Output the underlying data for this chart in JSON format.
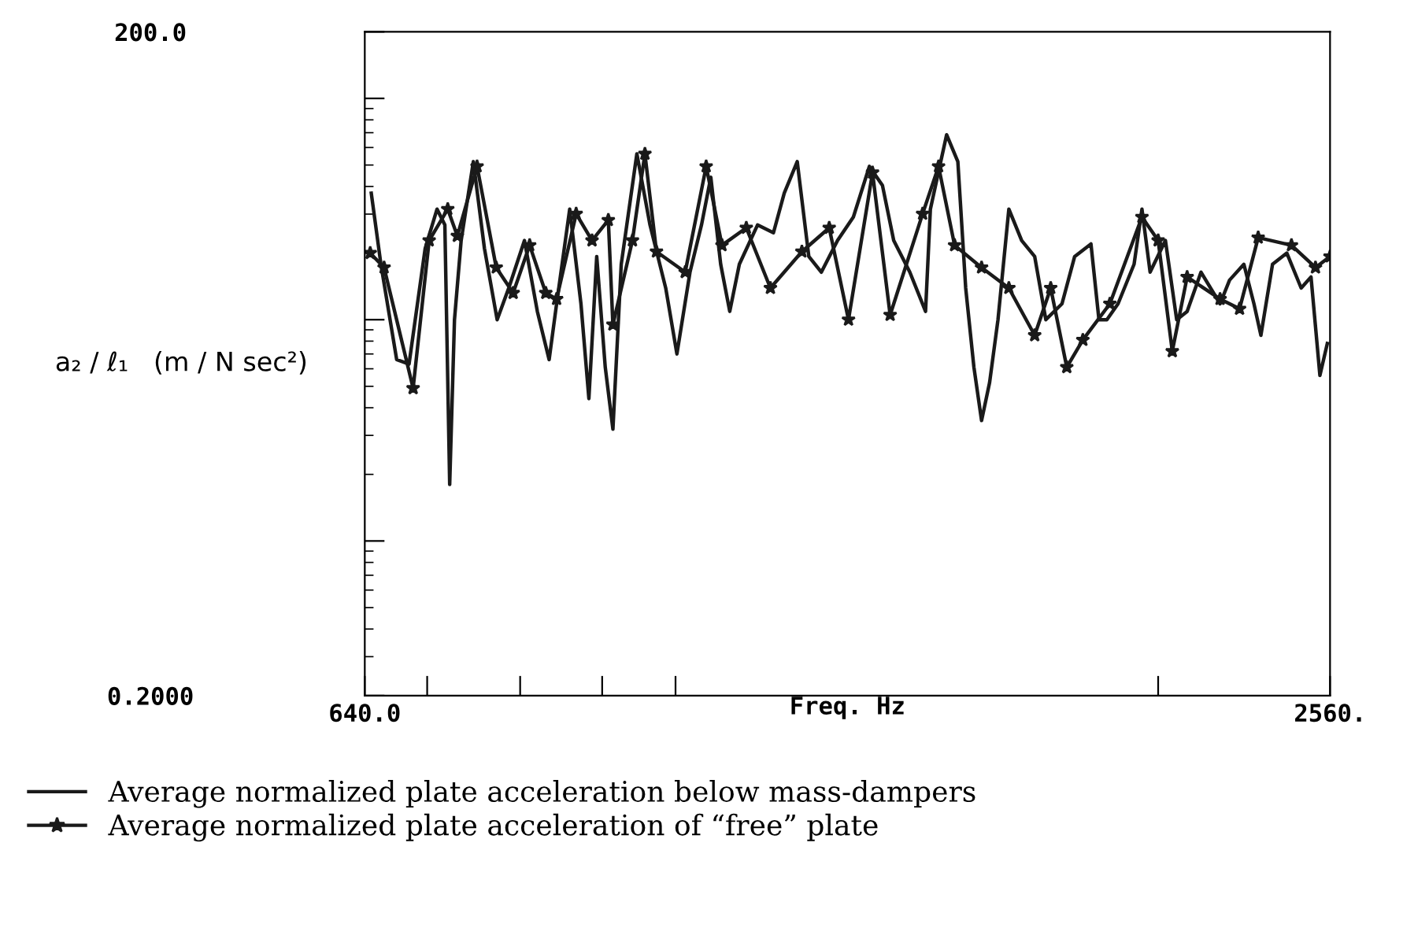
{
  "chart_data": {
    "type": "line",
    "xlabel": "Freq. Hz",
    "ylabel": "a₂ / ℓ₁   (m / N sec²)",
    "log": "xy",
    "xlim": [
      640,
      2560
    ],
    "ylim": [
      0.2,
      200
    ],
    "xticks": [
      {
        "value": 640,
        "label": "640.0"
      },
      {
        "value": 700,
        "label": null
      },
      {
        "value": 800,
        "label": null
      },
      {
        "value": 900,
        "label": null
      },
      {
        "value": 1000,
        "label": null
      },
      {
        "value": 2000,
        "label": null
      },
      {
        "value": 2560,
        "label": "2560."
      }
    ],
    "yticks": [
      {
        "value": 0.2,
        "label": "0.2000"
      },
      {
        "value": 1,
        "label": null
      },
      {
        "value": 10,
        "label": null
      },
      {
        "value": 100,
        "label": null
      },
      {
        "value": 200,
        "label": "200.0"
      }
    ],
    "grid": false,
    "legend": "bottom",
    "series": [
      {
        "name": "Average normalized plate acceleration below mass-dampers",
        "color": "#1a1a1a",
        "marker": "none",
        "x": [
          646,
          655,
          670,
          682,
          698,
          710,
          718,
          723,
          728,
          735,
          748,
          760,
          774,
          787,
          805,
          820,
          834,
          843,
          859,
          873,
          883,
          893,
          904,
          914,
          925,
          946,
          964,
          986,
          1002,
          1021,
          1038,
          1052,
          1067,
          1081,
          1096,
          1125,
          1151,
          1169,
          1191,
          1211,
          1233,
          1262,
          1291,
          1321,
          1346,
          1368,
          1400,
          1432,
          1442,
          1476,
          1500,
          1517,
          1535,
          1552,
          1570,
          1589,
          1614,
          1644,
          1675,
          1702,
          1742,
          1774,
          1816,
          1837,
          1858,
          1888,
          1932,
          1954,
          1977,
          2021,
          2054,
          2085,
          2127,
          2186,
          2216,
          2262,
          2295,
          2318,
          2357,
          2406,
          2456,
          2491,
          2523,
          2550
        ],
        "values": [
          37.3,
          17.8,
          6.6,
          6.3,
          21.0,
          31.6,
          26.8,
          1.8,
          10,
          22.8,
          51.8,
          21.0,
          10,
          13.9,
          22.8,
          10.9,
          6.6,
          11.8,
          31.6,
          11.8,
          4.4,
          19.3,
          6.1,
          3.2,
          17.8,
          56.2,
          26.8,
          13.9,
          7.0,
          16.4,
          26.8,
          44.0,
          17.8,
          10.9,
          17.8,
          26.8,
          24.7,
          37.3,
          51.8,
          19.3,
          16.4,
          22.8,
          29.1,
          49.3,
          40.5,
          22.8,
          16.4,
          10.9,
          31.6,
          68.5,
          51.8,
          13.9,
          6.1,
          3.5,
          5.2,
          10,
          31.6,
          22.8,
          19.3,
          10,
          11.8,
          19.3,
          22.0,
          10,
          10,
          11.8,
          17.8,
          31.6,
          16.4,
          22.8,
          10,
          10.9,
          16.4,
          11.8,
          15.1,
          17.8,
          11.8,
          8.5,
          17.8,
          20.0,
          13.9,
          15.6,
          5.6,
          7.8
        ]
      },
      {
        "name": "Average normalized plate acceleration of “free” plate",
        "color": "#1a1a1a",
        "marker": "star",
        "x": [
          645,
          658,
          686,
          702,
          721,
          731,
          752,
          773,
          792,
          811,
          830,
          843,
          867,
          887,
          908,
          914,
          940,
          957,
          973,
          1014,
          1045,
          1069,
          1107,
          1146,
          1199,
          1247,
          1282,
          1327,
          1361,
          1426,
          1459,
          1493,
          1552,
          1614,
          1675,
          1714,
          1754,
          1795,
          1866,
          1954,
          2000,
          2041,
          2085,
          2186,
          2248,
          2309,
          2422,
          2507,
          2560
        ],
        "values": [
          20.0,
          17.2,
          4.9,
          22.8,
          31.6,
          23.9,
          49.3,
          17.2,
          13.2,
          21.7,
          13.2,
          12.4,
          30.1,
          22.8,
          28.2,
          9.5,
          22.8,
          56.2,
          20.3,
          16.4,
          49.3,
          21.7,
          26.0,
          13.9,
          20.3,
          26.0,
          10,
          46.2,
          10.5,
          30.1,
          49.3,
          21.7,
          17.2,
          13.9,
          8.5,
          13.9,
          6.1,
          8.1,
          11.8,
          29.1,
          22.8,
          7.2,
          15.6,
          12.4,
          11.2,
          23.5,
          21.7,
          17.2,
          19.3
        ]
      }
    ]
  }
}
